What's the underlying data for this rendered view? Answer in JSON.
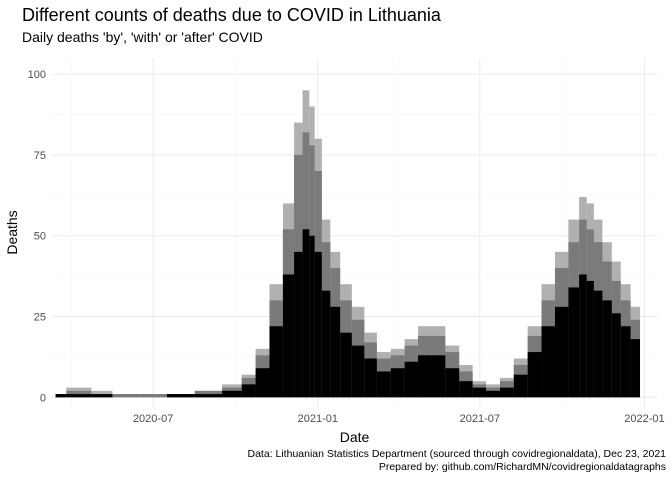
{
  "chart_data": {
    "type": "bar",
    "title": "Different counts of deaths due to COVID in Lithuania",
    "subtitle": "Daily deaths 'by', 'with' or 'after' COVID",
    "xlabel": "Date",
    "ylabel": "Deaths",
    "x_ticks": [
      "2020-07",
      "2021-01",
      "2021-07",
      "2022-01"
    ],
    "y_ticks": [
      0,
      25,
      50,
      75,
      100
    ],
    "ylim": [
      -3,
      105
    ],
    "xlim": [
      "2020-03-10",
      "2022-01-15"
    ],
    "grid": true,
    "legend": "none",
    "caption_lines": [
      "Data: Lithuanian Statistics Department (sourced through covidregionaldata), Dec 23, 2021",
      "Prepared by: github.com/RichardMN/covidregionaldatagraphs"
    ],
    "colors": {
      "after": "#b0b0b0",
      "with": "#7a7a7a",
      "by": "#000000"
    },
    "series": [
      {
        "x": [
          "2020-03-20",
          "2020-04-01",
          "2020-04-15",
          "2020-05-01",
          "2020-06-01",
          "2020-07-01",
          "2020-08-01",
          "2020-09-01",
          "2020-10-01",
          "2020-10-15",
          "2020-11-01",
          "2020-11-15",
          "2020-12-01",
          "2020-12-10",
          "2020-12-20",
          "2020-12-25",
          "2021-01-01",
          "2021-01-10",
          "2021-01-20",
          "2021-02-01",
          "2021-02-15",
          "2021-03-01",
          "2021-03-15",
          "2021-04-01",
          "2021-04-15",
          "2021-05-01",
          "2021-05-15",
          "2021-06-01",
          "2021-06-15",
          "2021-07-01",
          "2021-07-15",
          "2021-08-01",
          "2021-08-15",
          "2021-09-01",
          "2021-09-15",
          "2021-10-01",
          "2021-10-15",
          "2021-10-25",
          "2021-11-01",
          "2021-11-10",
          "2021-11-20",
          "2021-12-01",
          "2021-12-10",
          "2021-12-23"
        ],
        "values": [
          1,
          3,
          3,
          2,
          1,
          1,
          1,
          2,
          4,
          7,
          15,
          35,
          60,
          85,
          95,
          90,
          80,
          55,
          45,
          35,
          28,
          20,
          14,
          15,
          18,
          22,
          22,
          16,
          10,
          5,
          4,
          6,
          12,
          22,
          35,
          45,
          55,
          62,
          60,
          55,
          48,
          42,
          35,
          28
        ]
      },
      {
        "x": [
          "2020-03-20",
          "2020-04-01",
          "2020-04-15",
          "2020-05-01",
          "2020-06-01",
          "2020-07-01",
          "2020-08-01",
          "2020-09-01",
          "2020-10-01",
          "2020-10-15",
          "2020-11-01",
          "2020-11-15",
          "2020-12-01",
          "2020-12-10",
          "2020-12-20",
          "2020-12-25",
          "2021-01-01",
          "2021-01-10",
          "2021-01-20",
          "2021-02-01",
          "2021-02-15",
          "2021-03-01",
          "2021-03-15",
          "2021-04-01",
          "2021-04-15",
          "2021-05-01",
          "2021-05-15",
          "2021-06-01",
          "2021-06-15",
          "2021-07-01",
          "2021-07-15",
          "2021-08-01",
          "2021-08-15",
          "2021-09-01",
          "2021-09-15",
          "2021-10-01",
          "2021-10-15",
          "2021-10-25",
          "2021-11-01",
          "2021-11-10",
          "2021-11-20",
          "2021-12-01",
          "2021-12-10",
          "2021-12-23"
        ],
        "values": [
          1,
          2,
          2,
          1,
          1,
          1,
          1,
          2,
          3,
          6,
          13,
          30,
          52,
          75,
          82,
          78,
          70,
          48,
          40,
          30,
          24,
          17,
          12,
          13,
          16,
          19,
          19,
          14,
          8,
          4,
          3,
          5,
          10,
          19,
          30,
          40,
          48,
          55,
          52,
          48,
          42,
          36,
          30,
          24
        ]
      },
      {
        "x": [
          "2020-03-20",
          "2020-04-01",
          "2020-04-15",
          "2020-05-01",
          "2020-06-01",
          "2020-07-01",
          "2020-08-01",
          "2020-09-01",
          "2020-10-01",
          "2020-10-15",
          "2020-11-01",
          "2020-11-15",
          "2020-12-01",
          "2020-12-10",
          "2020-12-20",
          "2020-12-25",
          "2021-01-01",
          "2021-01-10",
          "2021-01-20",
          "2021-02-01",
          "2021-02-15",
          "2021-03-01",
          "2021-03-15",
          "2021-04-01",
          "2021-04-15",
          "2021-05-01",
          "2021-05-15",
          "2021-06-01",
          "2021-06-15",
          "2021-07-01",
          "2021-07-15",
          "2021-08-01",
          "2021-08-15",
          "2021-09-01",
          "2021-09-15",
          "2021-10-01",
          "2021-10-15",
          "2021-10-25",
          "2021-11-01",
          "2021-11-10",
          "2021-11-20",
          "2021-12-01",
          "2021-12-10",
          "2021-12-23"
        ],
        "values": [
          1,
          1,
          1,
          1,
          0,
          0,
          1,
          1,
          2,
          4,
          9,
          22,
          38,
          45,
          52,
          50,
          45,
          33,
          28,
          20,
          16,
          12,
          8,
          9,
          11,
          13,
          13,
          9,
          5,
          3,
          2,
          3,
          7,
          14,
          22,
          28,
          34,
          38,
          36,
          33,
          30,
          26,
          22,
          18
        ]
      }
    ]
  }
}
